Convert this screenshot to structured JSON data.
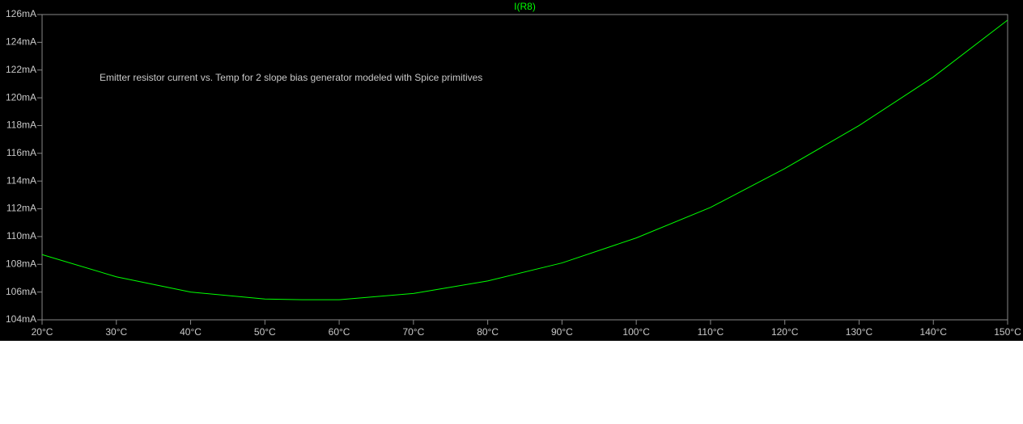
{
  "chart_data": {
    "type": "line",
    "annotation": "Emitter resistor current vs. Temp for 2 slope bias generator modeled with Spice primitives",
    "x": [
      20,
      30,
      40,
      50,
      55,
      60,
      70,
      80,
      90,
      100,
      110,
      120,
      130,
      140,
      150
    ],
    "series": [
      {
        "name": "I(R8)",
        "color": "#00ff00",
        "values": [
          108.7,
          107.1,
          106.0,
          105.5,
          105.45,
          105.45,
          105.9,
          106.8,
          108.1,
          109.9,
          112.1,
          114.9,
          118.0,
          121.5,
          125.6
        ]
      }
    ],
    "xlim": [
      20,
      150
    ],
    "xticks": [
      {
        "value": 20,
        "label": "20°C"
      },
      {
        "value": 30,
        "label": "30°C"
      },
      {
        "value": 40,
        "label": "40°C"
      },
      {
        "value": 50,
        "label": "50°C"
      },
      {
        "value": 60,
        "label": "60°C"
      },
      {
        "value": 70,
        "label": "70°C"
      },
      {
        "value": 80,
        "label": "80°C"
      },
      {
        "value": 90,
        "label": "90°C"
      },
      {
        "value": 100,
        "label": "100°C"
      },
      {
        "value": 110,
        "label": "110°C"
      },
      {
        "value": 120,
        "label": "120°C"
      },
      {
        "value": 130,
        "label": "130°C"
      },
      {
        "value": 140,
        "label": "140°C"
      },
      {
        "value": 150,
        "label": "150°C"
      }
    ],
    "ylim": [
      104,
      126
    ],
    "yticks": [
      {
        "value": 104,
        "label": "104mA"
      },
      {
        "value": 106,
        "label": "106mA"
      },
      {
        "value": 108,
        "label": "108mA"
      },
      {
        "value": 110,
        "label": "110mA"
      },
      {
        "value": 112,
        "label": "112mA"
      },
      {
        "value": 114,
        "label": "114mA"
      },
      {
        "value": 116,
        "label": "116mA"
      },
      {
        "value": 118,
        "label": "118mA"
      },
      {
        "value": 120,
        "label": "120mA"
      },
      {
        "value": 122,
        "label": "122mA"
      },
      {
        "value": 124,
        "label": "124mA"
      },
      {
        "value": 126,
        "label": "126mA"
      }
    ]
  }
}
